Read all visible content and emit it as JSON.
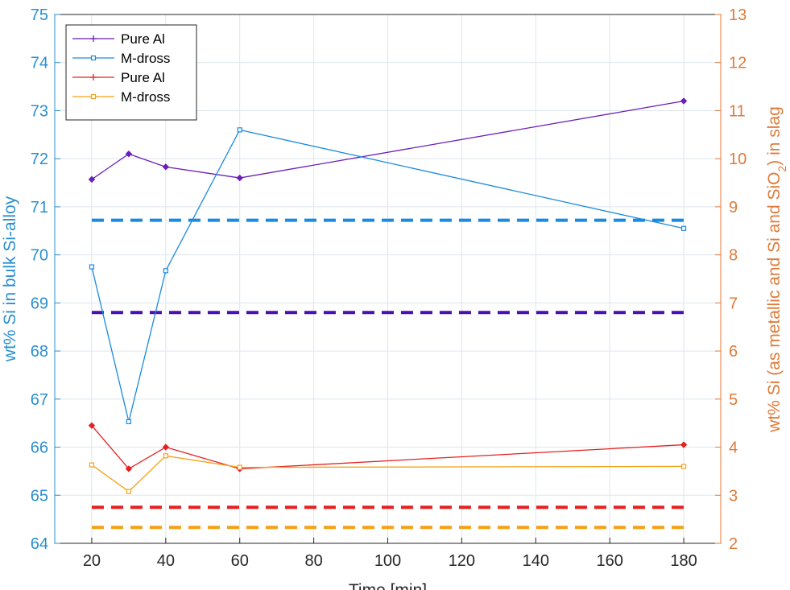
{
  "chart_data": {
    "type": "line",
    "title": "",
    "xlabel": "Time [min]",
    "ylabel_left": "wt% Si in bulk Si-alloy",
    "ylabel_right": "wt% Si (as metallic and Si and SiO",
    "ylabel_right_sub": "2",
    "ylabel_right_end": ") in slag",
    "xlim": [
      10,
      190
    ],
    "ylim_left": [
      64,
      75
    ],
    "ylim_right": [
      2,
      13
    ],
    "xticks": [
      20,
      40,
      60,
      80,
      100,
      120,
      140,
      160,
      180
    ],
    "yticks_left": [
      64,
      65,
      66,
      67,
      68,
      69,
      70,
      71,
      72,
      73,
      74,
      75
    ],
    "yticks_right": [
      2,
      3,
      4,
      5,
      6,
      7,
      8,
      9,
      10,
      11,
      12,
      13
    ],
    "grid": true,
    "legend_position": "top-left",
    "colors": {
      "left_axis": "#2a8fd0",
      "right_axis": "#e07a3a",
      "grid": "#dfe5ec",
      "frame": "#262626"
    },
    "series": [
      {
        "name": "Pure Al",
        "axis": "left",
        "color": "#6a1fb8",
        "marker": "plus",
        "x": [
          20,
          30,
          40,
          60,
          180
        ],
        "values": [
          71.57,
          72.1,
          71.83,
          71.6,
          73.2
        ]
      },
      {
        "name": "M-dross",
        "axis": "left",
        "color": "#1a8ae0",
        "marker": "square",
        "x": [
          20,
          30,
          40,
          60,
          180
        ],
        "values": [
          69.75,
          66.53,
          69.67,
          72.6,
          70.55
        ]
      },
      {
        "name": "Pure Al",
        "axis": "right",
        "color": "#e52020",
        "marker": "plus",
        "x": [
          20,
          30,
          40,
          60,
          180
        ],
        "values": [
          4.45,
          3.55,
          4.0,
          3.55,
          4.05
        ]
      },
      {
        "name": "M-dross",
        "axis": "right",
        "color": "#f5a015",
        "marker": "square",
        "x": [
          20,
          30,
          40,
          60,
          180
        ],
        "values": [
          3.63,
          3.08,
          3.82,
          3.58,
          3.6
        ]
      }
    ],
    "reference_lines": [
      {
        "axis": "left",
        "color": "#1a8ae0",
        "value": 70.72,
        "x_range": [
          20,
          180
        ]
      },
      {
        "axis": "left",
        "color": "#4a10b0",
        "value": 68.8,
        "x_range": [
          20,
          180
        ]
      },
      {
        "axis": "left",
        "color": "#e52020",
        "value": 64.75,
        "x_range": [
          20,
          180
        ]
      },
      {
        "axis": "left",
        "color": "#f5a015",
        "value": 64.33,
        "x_range": [
          20,
          180
        ]
      }
    ]
  }
}
